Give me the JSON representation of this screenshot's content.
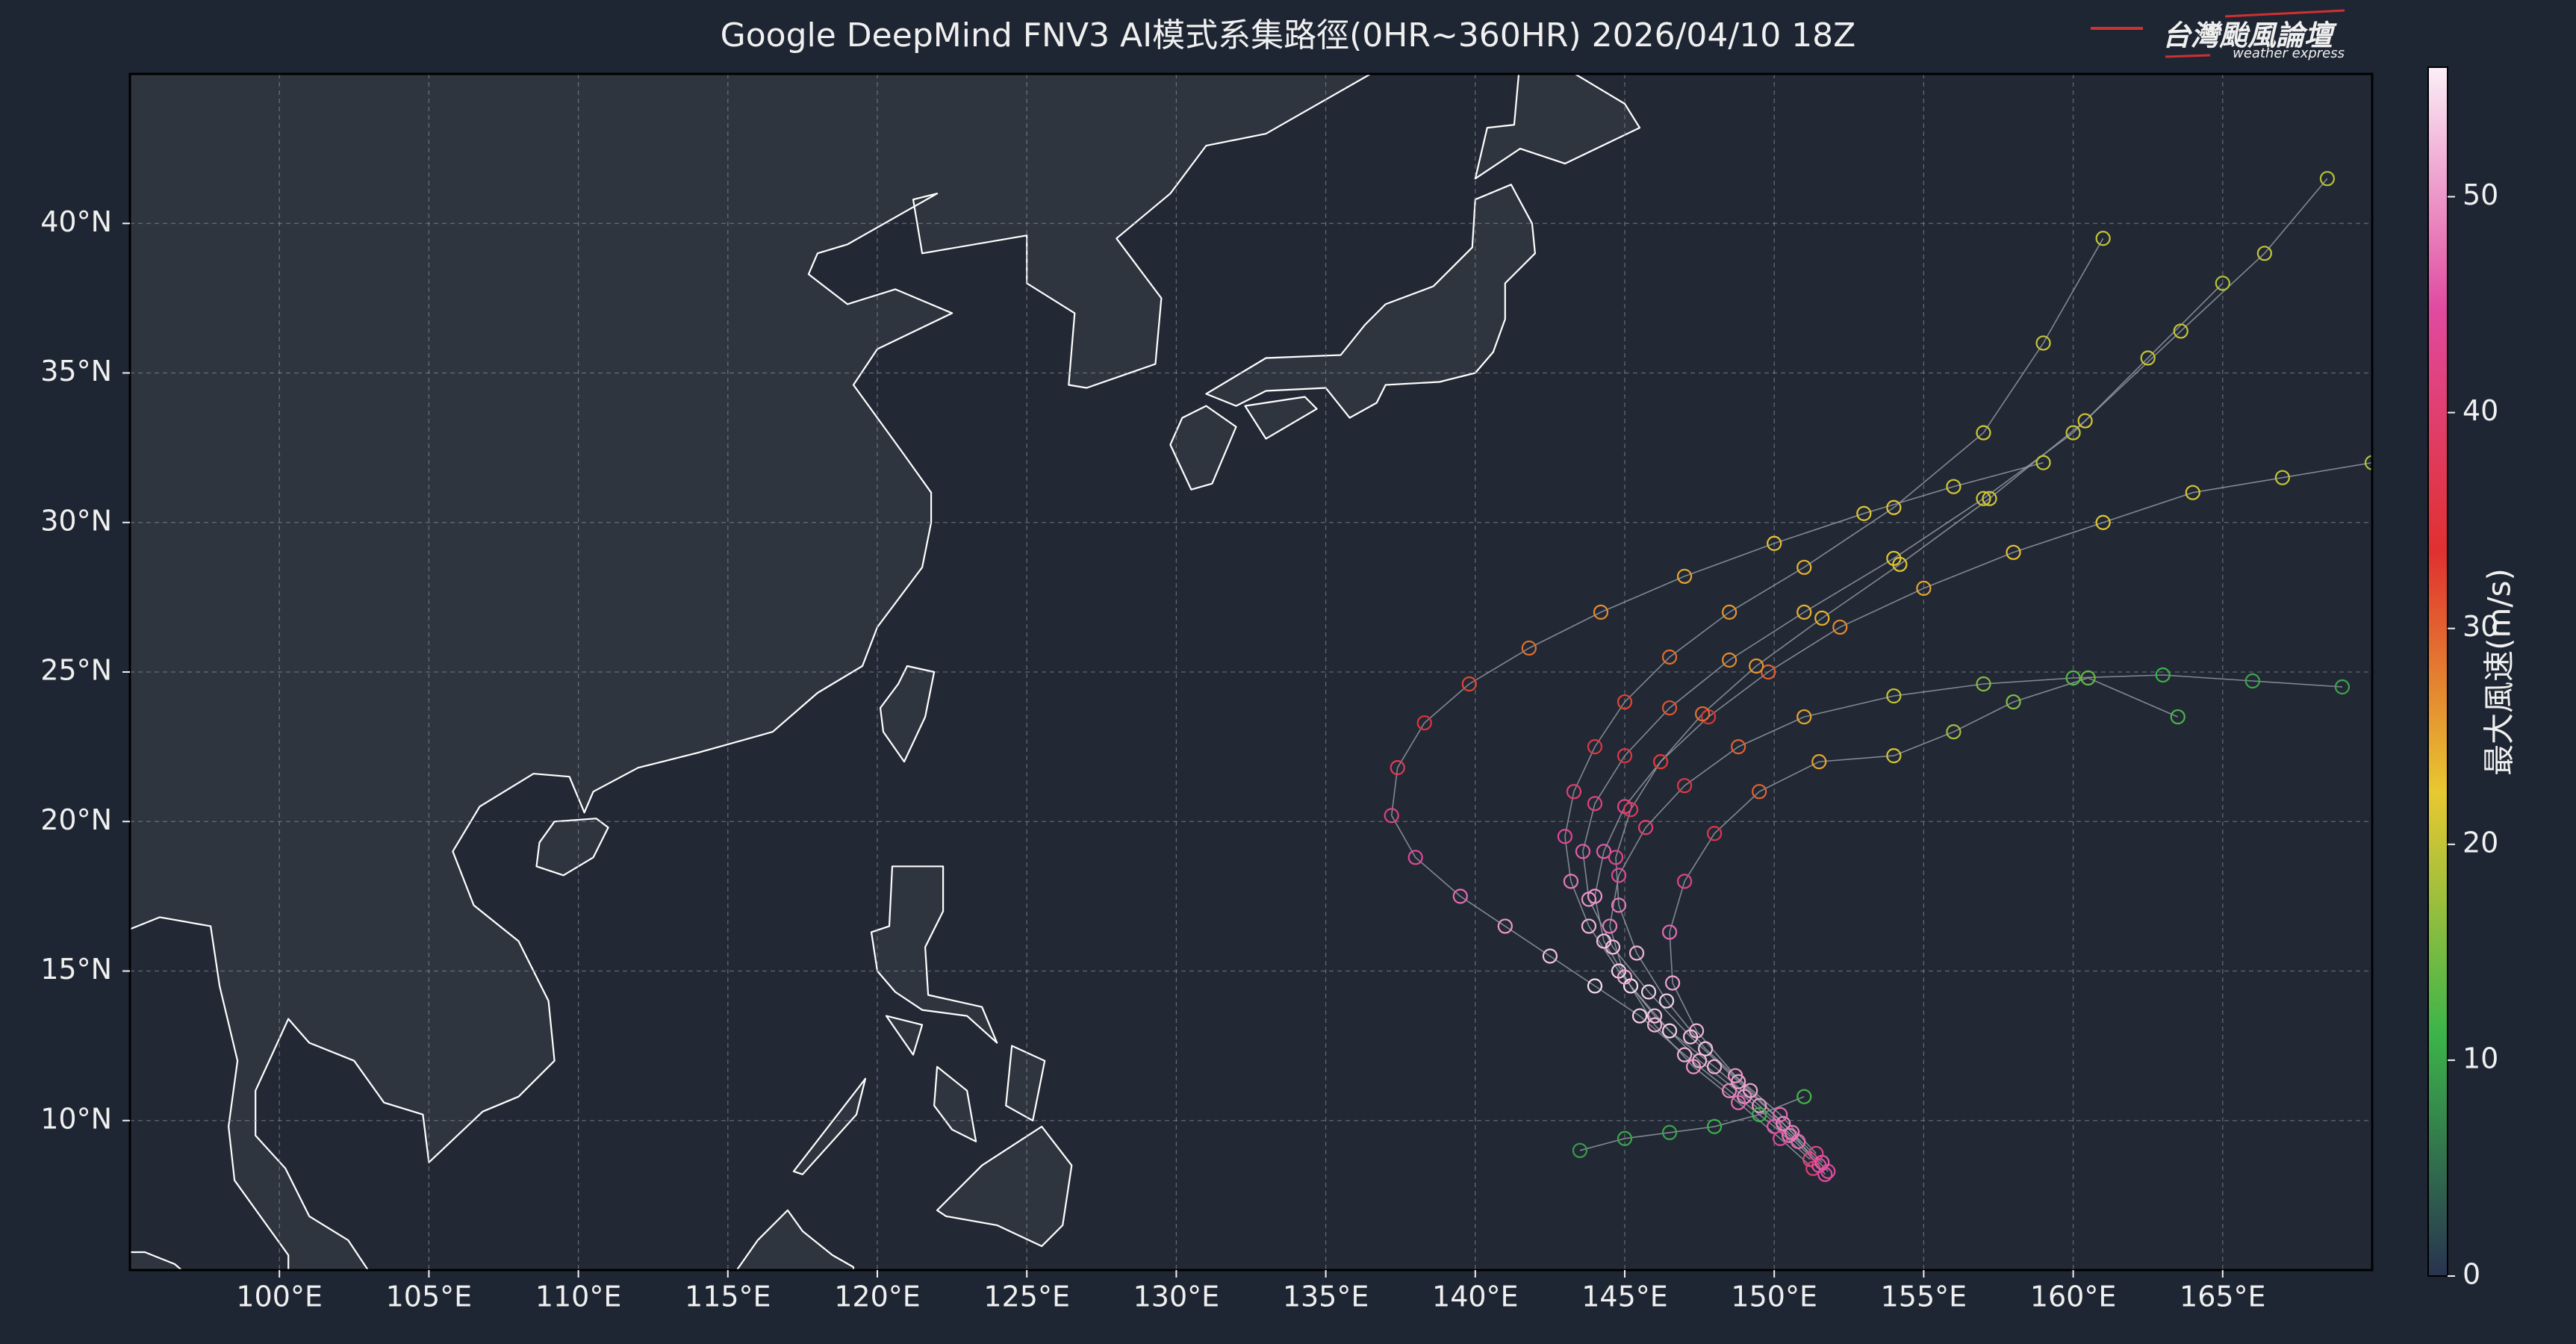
{
  "chart_data": {
    "type": "track-map",
    "title": "Google DeepMind FNV3 AI模式系集路徑(0HR~360HR) 2026/04/10 18Z",
    "logo": {
      "name": "台灣颱風論壇",
      "subtitle": "weather express"
    },
    "xlim": [
      95,
      170
    ],
    "ylim": [
      5,
      45
    ],
    "xticks": [
      {
        "value": 100,
        "label": "100°E"
      },
      {
        "value": 105,
        "label": "105°E"
      },
      {
        "value": 110,
        "label": "110°E"
      },
      {
        "value": 115,
        "label": "115°E"
      },
      {
        "value": 120,
        "label": "120°E"
      },
      {
        "value": 125,
        "label": "125°E"
      },
      {
        "value": 130,
        "label": "130°E"
      },
      {
        "value": 135,
        "label": "135°E"
      },
      {
        "value": 140,
        "label": "140°E"
      },
      {
        "value": 145,
        "label": "145°E"
      },
      {
        "value": 150,
        "label": "150°E"
      },
      {
        "value": 155,
        "label": "155°E"
      },
      {
        "value": 160,
        "label": "160°E"
      },
      {
        "value": 165,
        "label": "165°E"
      }
    ],
    "yticks": [
      {
        "value": 10,
        "label": "10°N"
      },
      {
        "value": 15,
        "label": "15°N"
      },
      {
        "value": 20,
        "label": "20°N"
      },
      {
        "value": 25,
        "label": "25°N"
      },
      {
        "value": 30,
        "label": "30°N"
      },
      {
        "value": 35,
        "label": "35°N"
      },
      {
        "value": 40,
        "label": "40°N"
      }
    ],
    "grid": true,
    "colorbar": {
      "label": "最大風速(m/s)",
      "clim": [
        0,
        56
      ],
      "ticks": [
        0,
        10,
        20,
        30,
        40,
        50
      ],
      "colormap": [
        "#283350",
        "#3cb44a",
        "#e8c830",
        "#e03030",
        "#e04aa0",
        "#fbeef8"
      ]
    },
    "track_color": "#9aa0a8",
    "tracks": [
      {
        "lon": [
          151.5,
          150.5,
          149,
          147.5,
          146,
          144.8,
          143.8,
          143.2,
          143,
          143.3,
          144,
          145,
          146.5,
          148.5,
          151,
          154,
          157,
          159,
          161
        ],
        "lat": [
          8.5,
          9.5,
          10.8,
          12,
          13.5,
          15,
          16.5,
          18,
          19.5,
          21,
          22.5,
          24,
          25.5,
          27,
          28.5,
          30.5,
          33,
          36,
          39.5
        ],
        "wind": [
          45,
          48,
          50,
          52,
          53,
          54,
          52,
          48,
          44,
          40,
          36,
          32,
          29,
          26,
          24,
          22,
          21,
          20,
          20
        ]
      },
      {
        "lon": [
          151.8,
          150.8,
          149.5,
          148,
          146.5,
          145.2,
          144.3,
          144,
          144.3,
          145,
          146.2,
          147.8,
          149.8,
          152.2,
          155,
          158,
          161,
          164,
          167,
          170
        ],
        "lat": [
          8.3,
          9.3,
          10.5,
          11.8,
          13,
          14.5,
          16,
          17.5,
          19,
          20.5,
          22,
          23.5,
          25,
          26.5,
          27.8,
          29,
          30,
          31,
          31.5,
          32
        ],
        "wind": [
          44,
          47,
          50,
          52,
          54,
          55,
          53,
          50,
          46,
          42,
          38,
          34,
          30,
          27,
          25,
          23,
          22,
          21,
          20,
          19
        ]
      },
      {
        "lon": [
          151.2,
          150,
          148.5,
          147,
          145.5,
          144,
          142.5,
          141,
          139.5,
          138,
          137.2,
          137.4,
          138.3,
          139.8,
          141.8,
          144.2,
          147,
          150,
          153,
          156,
          159
        ],
        "lat": [
          8.7,
          9.8,
          11,
          12.2,
          13.5,
          14.5,
          15.5,
          16.5,
          17.5,
          18.8,
          20.2,
          21.8,
          23.3,
          24.6,
          25.8,
          27,
          28.2,
          29.3,
          30.3,
          31.2,
          32
        ],
        "wind": [
          42,
          46,
          49,
          52,
          54,
          55,
          53,
          50,
          47,
          44,
          41,
          38,
          35,
          32,
          29,
          27,
          25,
          23,
          22,
          21,
          20
        ]
      },
      {
        "lon": [
          151.3,
          150.2,
          148.8,
          147.3,
          146,
          145,
          144.5,
          144.8,
          145.7,
          147,
          148.8,
          151,
          154,
          157,
          160,
          163,
          166,
          169
        ],
        "lat": [
          8.4,
          9.4,
          10.6,
          11.8,
          13.2,
          14.8,
          16.5,
          18.2,
          19.8,
          21.2,
          22.5,
          23.5,
          24.2,
          24.6,
          24.8,
          24.9,
          24.7,
          24.5
        ],
        "wind": [
          40,
          44,
          47,
          50,
          52,
          51,
          48,
          44,
          40,
          36,
          30,
          25,
          20,
          16,
          13,
          11,
          10,
          10
        ]
      },
      {
        "lon": [
          151,
          149.5,
          148,
          146.5,
          145,
          143.5
        ],
        "lat": [
          10.8,
          10.2,
          9.8,
          9.6,
          9.4,
          9
        ],
        "wind": [
          12,
          11,
          11,
          10,
          10,
          9
        ]
      },
      {
        "lon": [
          151.6,
          150.3,
          148.8,
          147.2,
          145.8,
          144.6,
          143.8,
          143.6,
          144,
          145,
          146.5,
          148.5,
          151,
          154,
          157,
          160,
          162.5,
          165
        ],
        "lat": [
          8.6,
          9.9,
          11.3,
          12.8,
          14.3,
          15.8,
          17.4,
          19,
          20.6,
          22.2,
          23.8,
          25.4,
          27,
          28.8,
          30.8,
          33,
          35.5,
          38
        ],
        "wind": [
          46,
          49,
          51,
          53,
          54,
          53,
          50,
          46,
          41,
          36,
          31,
          27,
          24,
          22,
          21,
          20,
          20,
          19
        ]
      },
      {
        "lon": [
          151.4,
          150.2,
          148.7,
          147.4,
          146.6,
          146.5,
          147,
          148,
          149.5,
          151.5,
          154,
          156,
          158,
          160.5,
          163.5
        ],
        "lat": [
          8.9,
          10.2,
          11.5,
          13,
          14.6,
          16.3,
          18,
          19.6,
          21,
          22,
          22.2,
          23,
          24,
          24.8,
          23.5
        ],
        "wind": [
          43,
          47,
          50,
          52,
          51,
          47,
          42,
          36,
          30,
          25,
          21,
          18,
          16,
          14,
          12
        ]
      },
      {
        "lon": [
          151.7,
          150.6,
          149.2,
          147.7,
          146.4,
          145.4,
          144.8,
          144.7,
          145.2,
          146.2,
          147.6,
          149.4,
          151.6,
          154.2,
          157.2,
          160.4,
          163.6,
          166.4,
          168.5
        ],
        "lat": [
          8.2,
          9.6,
          11,
          12.4,
          14,
          15.6,
          17.2,
          18.8,
          20.4,
          22,
          23.6,
          25.2,
          26.8,
          28.6,
          30.8,
          33.4,
          36.4,
          39,
          41.5
        ],
        "wind": [
          45,
          48,
          51,
          53,
          54,
          52,
          48,
          43,
          38,
          33,
          29,
          26,
          24,
          22,
          21,
          21,
          20,
          20,
          19
        ]
      }
    ]
  }
}
